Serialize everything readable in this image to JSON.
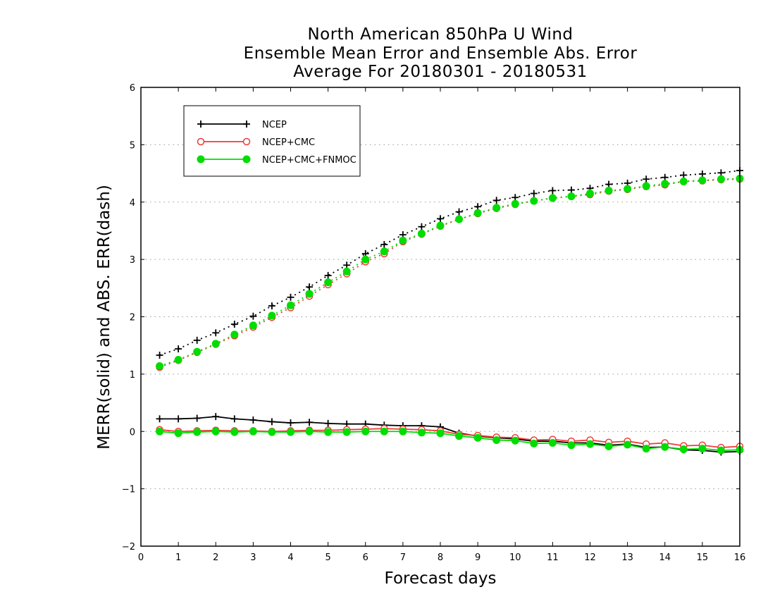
{
  "chart_data": {
    "type": "line",
    "title": [
      "North American 850hPa U Wind",
      "Ensemble Mean Error and Ensemble Abs. Error",
      "Average For 20180301 - 20180531"
    ],
    "xlabel": "Forecast days",
    "ylabel": "MERR(solid) and ABS. ERR(dash)",
    "xlim": [
      0,
      16
    ],
    "ylim": [
      -2,
      6
    ],
    "x_ticks": [
      0,
      1,
      2,
      3,
      4,
      5,
      6,
      7,
      8,
      9,
      10,
      11,
      12,
      13,
      14,
      15,
      16
    ],
    "x_tick_labels": [
      "0",
      "1",
      "2",
      "3",
      "4",
      "5",
      "6",
      "7",
      "8",
      "9",
      "10",
      "11",
      "12",
      "13",
      "14",
      "15",
      "16"
    ],
    "y_ticks": [
      -2,
      -1,
      0,
      1,
      2,
      3,
      4,
      5,
      6
    ],
    "y_tick_labels": [
      "−2",
      "−1",
      "0",
      "1",
      "2",
      "3",
      "4",
      "5",
      "6"
    ],
    "grid": "horizontal dotted",
    "legend_position": "top-left",
    "x": [
      0.5,
      1,
      1.5,
      2,
      2.5,
      3,
      3.5,
      4,
      4.5,
      5,
      5.5,
      6,
      6.5,
      7,
      7.5,
      8,
      8.5,
      9,
      9.5,
      10,
      10.5,
      11,
      11.5,
      12,
      12.5,
      13,
      13.5,
      14,
      14.5,
      15,
      15.5,
      16
    ],
    "series": [
      {
        "name": "NCEP",
        "color": "#000000",
        "marker": "plus",
        "merr": [
          0.22,
          0.22,
          0.23,
          0.26,
          0.22,
          0.2,
          0.17,
          0.15,
          0.16,
          0.14,
          0.13,
          0.13,
          0.11,
          0.1,
          0.1,
          0.08,
          -0.03,
          -0.08,
          -0.11,
          -0.13,
          -0.17,
          -0.17,
          -0.2,
          -0.2,
          -0.24,
          -0.22,
          -0.28,
          -0.27,
          -0.32,
          -0.33,
          -0.36,
          -0.35
        ],
        "abs_err": [
          1.33,
          1.44,
          1.59,
          1.72,
          1.87,
          2.01,
          2.19,
          2.34,
          2.52,
          2.72,
          2.9,
          3.1,
          3.26,
          3.43,
          3.57,
          3.71,
          3.83,
          3.92,
          4.03,
          4.08,
          4.15,
          4.2,
          4.21,
          4.24,
          4.31,
          4.33,
          4.4,
          4.43,
          4.47,
          4.49,
          4.51,
          4.55
        ]
      },
      {
        "name": "NCEP+CMC",
        "color": "#ee3b3b",
        "marker": "open-circle",
        "merr": [
          0.03,
          0.0,
          0.01,
          0.02,
          0.01,
          0.01,
          0.0,
          0.01,
          0.02,
          0.02,
          0.03,
          0.04,
          0.05,
          0.04,
          0.03,
          0.01,
          -0.05,
          -0.07,
          -0.1,
          -0.11,
          -0.15,
          -0.14,
          -0.17,
          -0.15,
          -0.19,
          -0.17,
          -0.22,
          -0.2,
          -0.25,
          -0.24,
          -0.28,
          -0.26
        ],
        "abs_err": [
          1.12,
          1.24,
          1.38,
          1.52,
          1.67,
          1.82,
          1.99,
          2.16,
          2.36,
          2.56,
          2.75,
          2.96,
          3.1,
          3.31,
          3.44,
          3.58,
          3.7,
          3.8,
          3.89,
          3.96,
          4.02,
          4.07,
          4.1,
          4.13,
          4.19,
          4.22,
          4.27,
          4.3,
          4.36,
          4.37,
          4.39,
          4.4
        ]
      },
      {
        "name": "NCEP+CMC+FNMOC",
        "color": "#00dd00",
        "marker": "filled-circle",
        "merr": [
          0.0,
          -0.03,
          -0.01,
          0.0,
          -0.01,
          0.0,
          -0.01,
          -0.01,
          0.0,
          -0.01,
          -0.01,
          0.0,
          0.0,
          0.0,
          -0.02,
          -0.03,
          -0.08,
          -0.11,
          -0.15,
          -0.16,
          -0.21,
          -0.2,
          -0.24,
          -0.22,
          -0.26,
          -0.23,
          -0.3,
          -0.27,
          -0.31,
          -0.3,
          -0.33,
          -0.32
        ],
        "abs_err": [
          1.14,
          1.25,
          1.39,
          1.53,
          1.69,
          1.85,
          2.02,
          2.2,
          2.4,
          2.6,
          2.79,
          3.0,
          3.14,
          3.33,
          3.45,
          3.59,
          3.7,
          3.81,
          3.9,
          3.97,
          4.02,
          4.07,
          4.1,
          4.15,
          4.2,
          4.23,
          4.28,
          4.32,
          4.36,
          4.38,
          4.4,
          4.41
        ]
      }
    ]
  }
}
